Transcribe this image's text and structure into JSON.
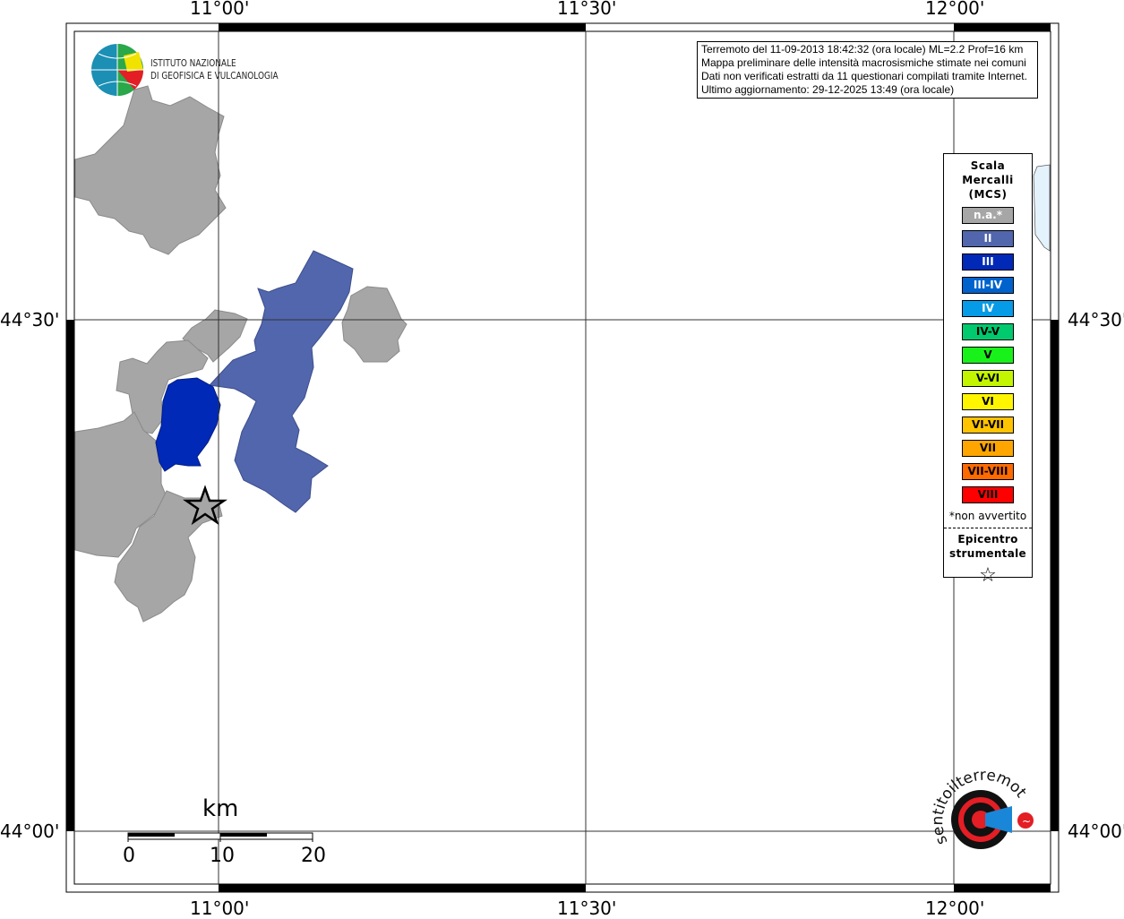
{
  "axes": {
    "lon_ticks": [
      "11°00'",
      "11°30'",
      "12°00'"
    ],
    "lat_ticks": [
      "44°30'",
      "44°00'"
    ]
  },
  "info_box": {
    "lines": [
      "Terremoto del 11-09-2013 18:42:32 (ora locale) ML=2.2 Prof=16 km",
      "Mappa preliminare delle intensità macrosismiche stimate nei comuni",
      "Dati non verificati estratti da 11 questionari compilati tramite Internet.",
      "Ultimo aggiornamento: 29-12-2025 13:49 (ora locale)"
    ]
  },
  "logo": {
    "line1": "ISTITUTO NAZIONALE",
    "line2": "DI GEOFISICA E VULCANOLOGIA"
  },
  "legend": {
    "title": [
      "Scala",
      "Mercalli",
      "(MCS)"
    ],
    "items": [
      {
        "label": "n.a.*",
        "color": "#a6a6a6",
        "text": "#ffffff"
      },
      {
        "label": "II",
        "color": "#5166ad",
        "text": "#ffffff"
      },
      {
        "label": "III",
        "color": "#0029b8",
        "text": "#ffffff"
      },
      {
        "label": "III-IV",
        "color": "#0062cc",
        "text": "#ffffff"
      },
      {
        "label": "IV",
        "color": "#069be6",
        "text": "#ffffff"
      },
      {
        "label": "IV-V",
        "color": "#00c96e",
        "text": "#000000"
      },
      {
        "label": "V",
        "color": "#19f21a",
        "text": "#000000"
      },
      {
        "label": "V-VI",
        "color": "#c3f500",
        "text": "#000000"
      },
      {
        "label": "VI",
        "color": "#fff500",
        "text": "#000000"
      },
      {
        "label": "VI-VII",
        "color": "#ffc300",
        "text": "#000000"
      },
      {
        "label": "VII",
        "color": "#ffa500",
        "text": "#000000"
      },
      {
        "label": "VII-VIII",
        "color": "#ff6a00",
        "text": "#000000"
      },
      {
        "label": "VIII",
        "color": "#ff0000",
        "text": "#000000"
      }
    ],
    "note": "*non avvertito",
    "epicenter_title": [
      "Epicentro",
      "strumentale"
    ],
    "epicenter_symbol": "☆"
  },
  "scale_bar": {
    "unit": "km",
    "labels": [
      "0",
      "10",
      "20"
    ]
  },
  "municipalities": [
    {
      "intensity": "n.a.",
      "color": "#a6a6a6"
    },
    {
      "intensity": "II",
      "color": "#5166ad"
    },
    {
      "intensity": "III",
      "color": "#0029b8"
    }
  ],
  "watermark": "www.haisentitoilterremoto.it"
}
